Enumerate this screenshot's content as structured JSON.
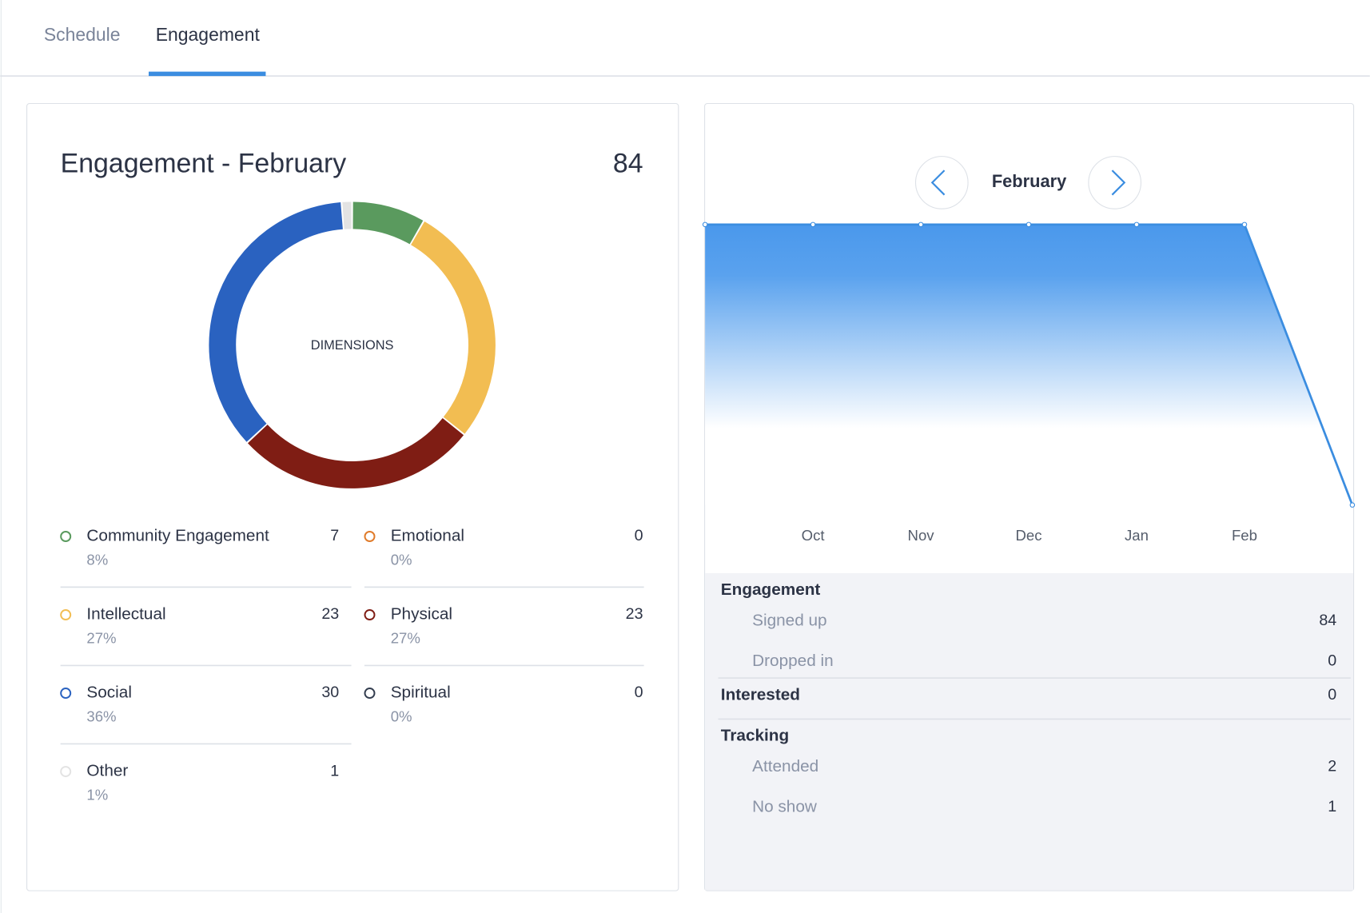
{
  "tabs": [
    "Schedule",
    "Engagement"
  ],
  "chart_data": [
    {
      "type": "pie",
      "title": "Engagement - February",
      "total": 84,
      "center_label": "DIMENSIONS",
      "categories": [
        "Community Engagement",
        "Emotional",
        "Intellectual",
        "Physical",
        "Social",
        "Spiritual",
        "Other"
      ],
      "values": [
        7,
        0,
        23,
        23,
        30,
        0,
        1
      ],
      "shares": [
        "8%",
        "0%",
        "27%",
        "27%",
        "36%",
        "0%",
        "1%"
      ],
      "colors": [
        "#5a9a5e",
        "#e07b2a",
        "#f2bd52",
        "#7f1d14",
        "#2a62c0",
        "#333d4f",
        "#e3e3e3"
      ]
    },
    {
      "type": "area",
      "period": "February",
      "categories": [
        null,
        "Oct",
        "Nov",
        "Dec",
        "Jan",
        "Feb",
        null
      ],
      "values": [
        84,
        84,
        84,
        84,
        84,
        84,
        0
      ],
      "ylim": [
        0,
        84
      ],
      "color": "#3b8de0"
    }
  ],
  "stats": [
    {
      "label": "Engagement",
      "rows": [
        {
          "label": "Signed up",
          "value": 84
        },
        {
          "label": "Dropped in",
          "value": 0
        }
      ]
    },
    {
      "label": "Interested",
      "value": 0
    },
    {
      "label": "Tracking",
      "rows": [
        {
          "label": "Attended",
          "value": 2
        },
        {
          "label": "No show",
          "value": 1
        }
      ]
    }
  ]
}
